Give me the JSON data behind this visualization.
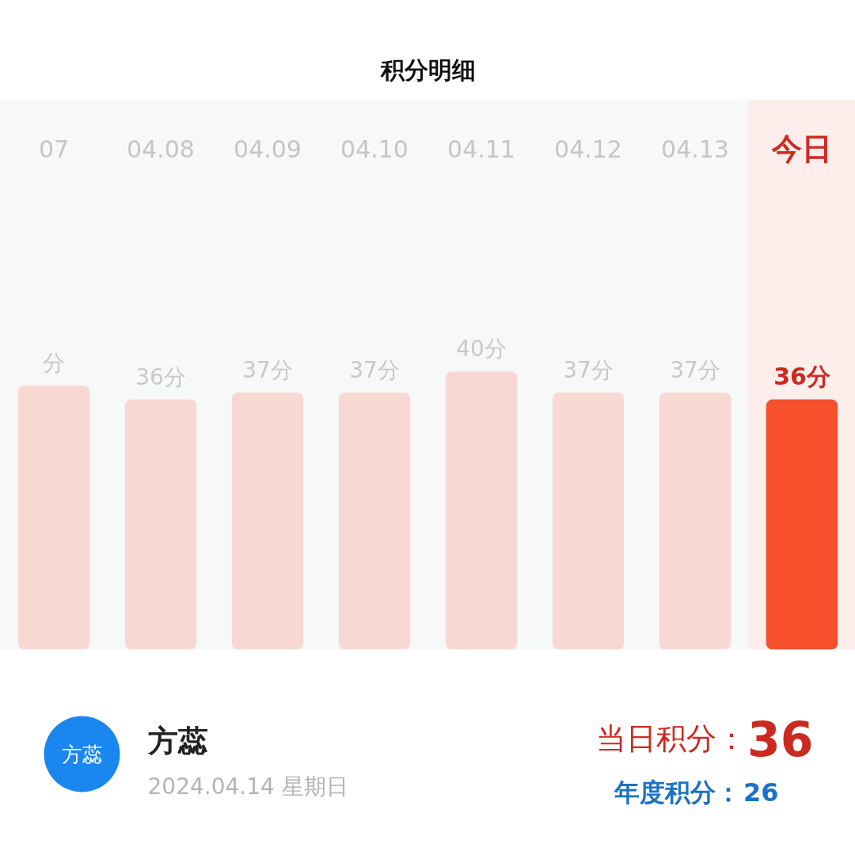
{
  "chart_data": {
    "type": "bar",
    "title": "积分明细",
    "categories": [
      "07",
      "04.08",
      "04.09",
      "04.10",
      "04.11",
      "04.12",
      "04.13",
      "今日"
    ],
    "values": [
      38,
      36,
      37,
      37,
      40,
      37,
      37,
      36
    ],
    "value_labels": [
      "分",
      "36分",
      "37分",
      "37分",
      "40分",
      "37分",
      "37分",
      "36分"
    ],
    "colors": [
      "#f8d8d3",
      "#f8d8d3",
      "#f8d8d3",
      "#f8d8d3",
      "#f8d8d3",
      "#f8d8d3",
      "#f8d8d3",
      "#f5502b"
    ],
    "bands": [
      {
        "axis": "x",
        "from": "今日",
        "to": "今日",
        "color": "#fdeeec"
      }
    ],
    "annotations": [
      "方蕊",
      "方蕊",
      "2024.04.14 星期日",
      "当日积分：",
      "36",
      "年度积分：",
      "26"
    ]
  }
}
